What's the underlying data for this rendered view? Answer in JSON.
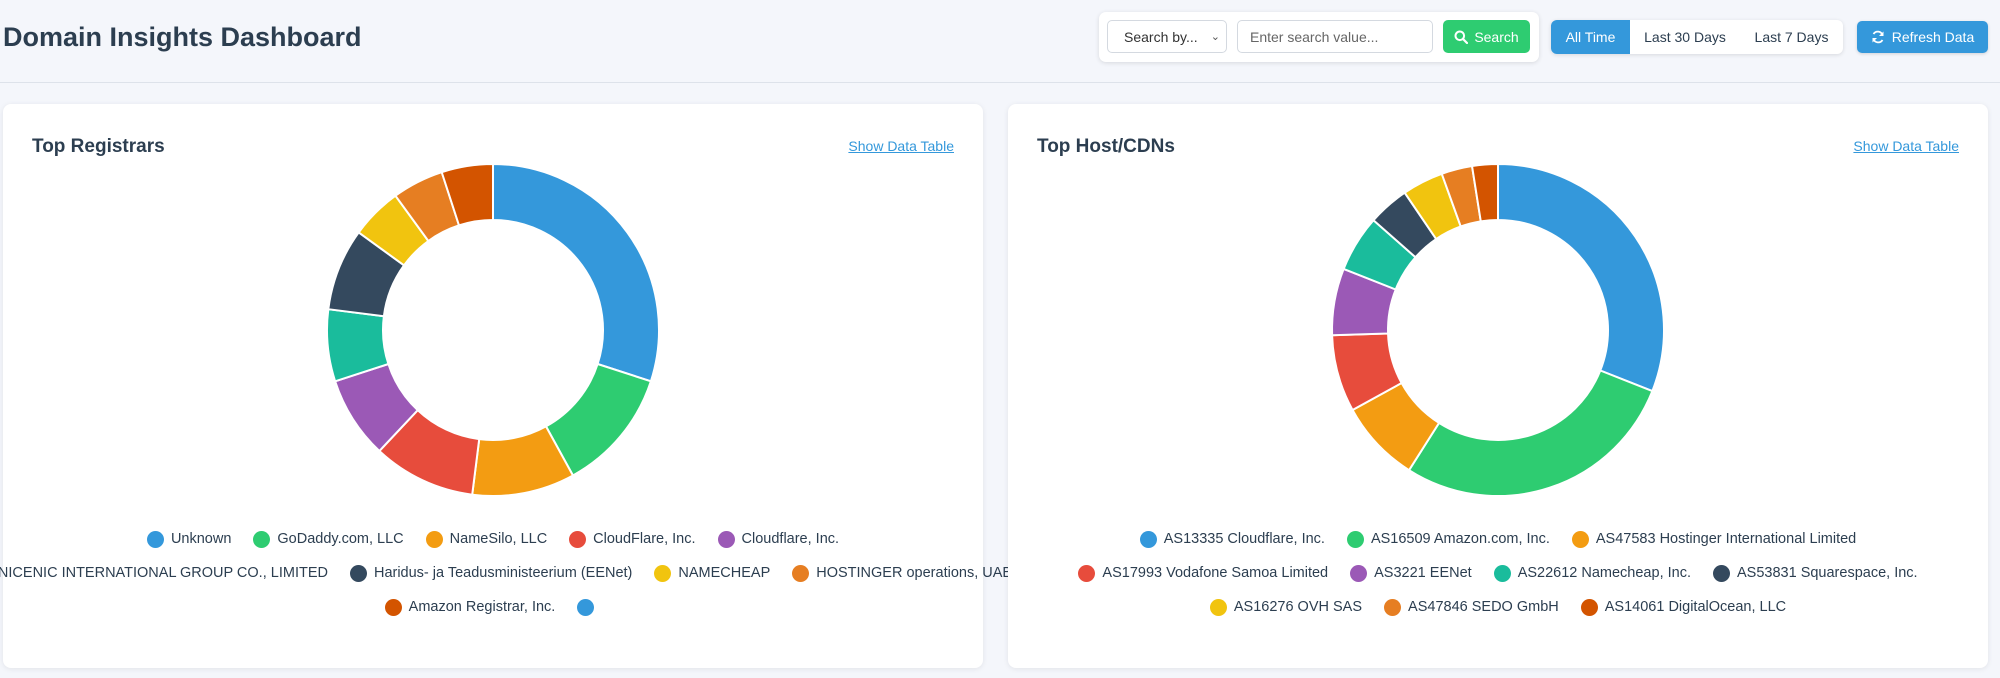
{
  "header": {
    "title": "Domain Insights Dashboard",
    "search_select": "Search by...",
    "search_placeholder": "Enter search value...",
    "search_button": "Search",
    "time_ranges": [
      "All Time",
      "Last 30 Days",
      "Last 7 Days"
    ],
    "active_range": "All Time",
    "refresh_button": "Refresh Data"
  },
  "cards": [
    {
      "title": "Top Registrars",
      "link": "Show Data Table"
    },
    {
      "title": "Top Host/CDNs",
      "link": "Show Data Table"
    }
  ],
  "colors": [
    "#3498db",
    "#2ecc71",
    "#f39c12",
    "#e74c3c",
    "#9b59b6",
    "#1abc9c",
    "#34495e",
    "#f1c40f",
    "#e67e22",
    "#d35400"
  ],
  "chart_data": [
    {
      "type": "pie",
      "title": "Top Registrars",
      "categories": [
        "Unknown",
        "GoDaddy.com, LLC",
        "NameSilo, LLC",
        "CloudFlare, Inc.",
        "Cloudflare, Inc.",
        "NICENIC INTERNATIONAL GROUP CO., LIMITED",
        "Haridus- ja Teadusministeerium (EENet)",
        "NAMECHEAP",
        "HOSTINGER operations, UAB",
        "Amazon Registrar, Inc."
      ],
      "values": [
        30,
        12,
        10,
        10,
        8,
        7,
        8,
        5,
        5,
        5
      ],
      "legend": "bottom"
    },
    {
      "type": "pie",
      "title": "Top Host/CDNs",
      "categories": [
        "AS13335 Cloudflare, Inc.",
        "AS16509 Amazon.com, Inc.",
        "AS47583 Hostinger International Limited",
        "AS17993 Vodafone Samoa Limited",
        "AS3221 EENet",
        "AS22612 Namecheap, Inc.",
        "AS53831 Squarespace, Inc.",
        "AS16276 OVH SAS",
        "AS47846 SEDO GmbH",
        "AS14061 DigitalOcean, LLC"
      ],
      "values": [
        31,
        28,
        8,
        7.5,
        6.5,
        5.5,
        4,
        4,
        3,
        2.5
      ],
      "legend": "bottom"
    }
  ]
}
